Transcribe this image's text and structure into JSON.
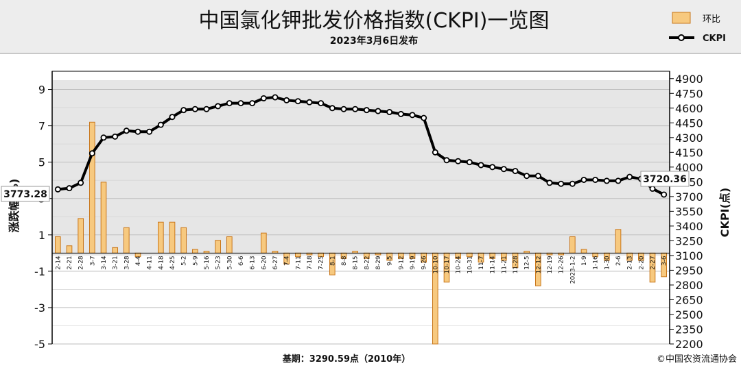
{
  "chart_data": {
    "type": "bar+line",
    "title": "中国氯化钾批发价格指数(CKPI)一览图",
    "subtitle": "2023年3月6日发布",
    "ylabel_left": "涨跌幅(%)",
    "ylabel_right": "CKPI(点)",
    "left_ylim": [
      -5,
      10
    ],
    "left_ticks": [
      9,
      7,
      5,
      3,
      1,
      -1,
      -3,
      -5
    ],
    "right_ylim": [
      2200,
      4975
    ],
    "right_ticks": [
      4900,
      4750,
      4600,
      4450,
      4300,
      4150,
      4000,
      3850,
      3700,
      3550,
      3400,
      3250,
      3100,
      2950,
      2800,
      2650,
      2500,
      2350,
      2200
    ],
    "grid": true,
    "legend_position": "top-right",
    "legend": {
      "bar_label": "环比",
      "line_label": "CKPI"
    },
    "categories": [
      "2-14",
      "2-21",
      "2-28",
      "3-7",
      "3-14",
      "3-21",
      "3-28",
      "4-4",
      "4-11",
      "4-18",
      "4-25",
      "5-2",
      "5-9",
      "5-16",
      "5-23",
      "5-30",
      "6-6",
      "6-13",
      "6-20",
      "6-27",
      "7-4",
      "7-11",
      "7-18",
      "7-25",
      "8-1",
      "8-8",
      "8-15",
      "8-22",
      "8-29",
      "9-5",
      "9-12",
      "9-19",
      "9-26",
      "10-10",
      "10-17",
      "10-24",
      "10-31",
      "11-7",
      "11-14",
      "11-21",
      "11-28",
      "12-5",
      "12-12",
      "12-19",
      "12-26",
      "2023-1-2",
      "1-9",
      "1-16",
      "1-30",
      "2-6",
      "2-13",
      "2-20",
      "2-27",
      "3-6"
    ],
    "series": [
      {
        "name": "环比",
        "type": "bar",
        "axis": "left",
        "color": "#f2a84a",
        "values": [
          0.9,
          0.4,
          1.9,
          7.2,
          3.9,
          0.3,
          1.4,
          -0.2,
          0.0,
          1.7,
          1.7,
          1.4,
          0.2,
          0.1,
          0.7,
          0.9,
          0.0,
          0.0,
          1.1,
          0.1,
          -0.6,
          -0.2,
          -0.1,
          -0.2,
          -1.2,
          -0.3,
          0.1,
          -0.3,
          -0.1,
          -0.4,
          -0.3,
          -0.3,
          -0.5,
          -5.0,
          -1.6,
          -0.3,
          -0.2,
          -0.5,
          -0.3,
          -0.4,
          -0.8,
          0.1,
          -1.8,
          -0.1,
          -0.1,
          0.9,
          0.2,
          -0.2,
          -0.4,
          1.3,
          -0.4,
          -0.4,
          -1.6,
          -1.3
        ]
      },
      {
        "name": "CKPI",
        "type": "line",
        "axis": "right",
        "color": "#000000",
        "values": [
          3773.28,
          3785,
          3840,
          4140,
          4300,
          4310,
          4370,
          4360,
          4360,
          4430,
          4510,
          4580,
          4590,
          4590,
          4620,
          4650,
          4650,
          4650,
          4700,
          4710,
          4680,
          4670,
          4660,
          4650,
          4600,
          4590,
          4590,
          4580,
          4570,
          4560,
          4540,
          4530,
          4500,
          4150,
          4070,
          4060,
          4050,
          4020,
          4000,
          3980,
          3960,
          3910,
          3910,
          3840,
          3830,
          3830,
          3870,
          3870,
          3860,
          3860,
          3900,
          3880,
          3780,
          3720.36
        ]
      }
    ],
    "annotations": {
      "first_value": "3773.28",
      "last_value": "3720.36"
    },
    "footer": {
      "base": "基期：3290.59点（2010年）",
      "copyright": "©中国农资流通协会"
    }
  }
}
